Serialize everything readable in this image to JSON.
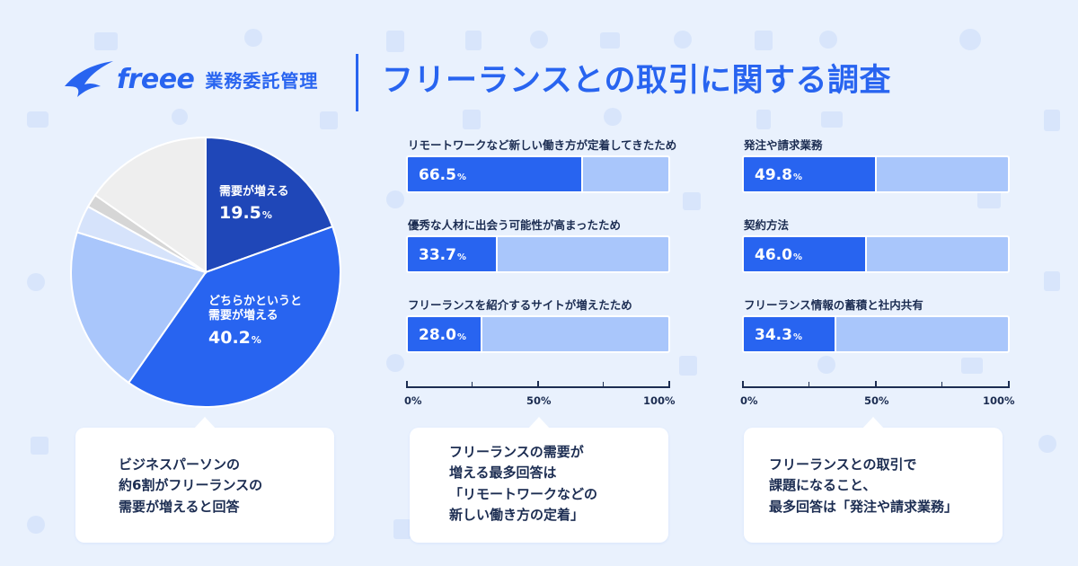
{
  "header": {
    "logo_word": "freee",
    "service_name": "業務委託管理",
    "title": "フリーランスとの取引に関する調査"
  },
  "colors": {
    "background": "#e9f1fd",
    "accent": "#2864f0",
    "dark_navy": "#1f47b8",
    "bar_track": "#a9c6fb",
    "pale_blue": "#d6e3fb",
    "gray": "#d6d6d6",
    "light_gray": "#eeeeee",
    "text": "#1c2d52"
  },
  "chart_data": [
    {
      "type": "pie",
      "title": "",
      "slices": [
        {
          "label_lines": [
            "需要が増える"
          ],
          "value": 19.5,
          "display": "19.5",
          "color": "#1f47b8",
          "labeled": true
        },
        {
          "label_lines": [
            "どちらかというと",
            "需要が増える"
          ],
          "value": 40.2,
          "display": "40.2",
          "color": "#2864f0",
          "labeled": true
        },
        {
          "label_lines": [],
          "value": 20.1,
          "color": "#a9c6fb",
          "labeled": false
        },
        {
          "label_lines": [],
          "value": 3.3,
          "color": "#d6e3fb",
          "labeled": false
        },
        {
          "label_lines": [],
          "value": 1.6,
          "color": "#d6d6d6",
          "labeled": false
        },
        {
          "label_lines": [],
          "value": 15.3,
          "color": "#eeeeee",
          "labeled": false
        }
      ],
      "percent_unit": "%"
    },
    {
      "type": "bar",
      "orientation": "horizontal",
      "categories": [
        "リモートワークなど新しい働き方が定着してきたため",
        "優秀な人材に出会う可能性が高まったため",
        "フリーランスを紹介するサイトが増えたため"
      ],
      "values": [
        66.5,
        33.7,
        28.0
      ],
      "value_labels": [
        "66.5",
        "33.7",
        "28.0"
      ],
      "xlim": [
        0,
        100
      ],
      "xticks": [
        "0%",
        "50%",
        "100%"
      ],
      "percent_unit": "%"
    },
    {
      "type": "bar",
      "orientation": "horizontal",
      "categories": [
        "発注や請求業務",
        "契約方法",
        "フリーランス情報の蓄積と社内共有"
      ],
      "values": [
        49.8,
        46.0,
        34.3
      ],
      "value_labels": [
        "49.8",
        "46.0",
        "34.3"
      ],
      "xlim": [
        0,
        100
      ],
      "xticks": [
        "0%",
        "50%",
        "100%"
      ],
      "percent_unit": "%"
    }
  ],
  "callouts": [
    {
      "lines": [
        "ビジネスパーソンの",
        "約6割がフリーランスの",
        "需要が増えると回答"
      ]
    },
    {
      "lines": [
        "フリーランスの需要が",
        "増える最多回答は",
        "「リモートワークなどの",
        "新しい働き方の定着」"
      ]
    },
    {
      "lines": [
        "フリーランスとの取引で",
        "課題になること、",
        "最多回答は「発注や請求業務」"
      ]
    }
  ]
}
